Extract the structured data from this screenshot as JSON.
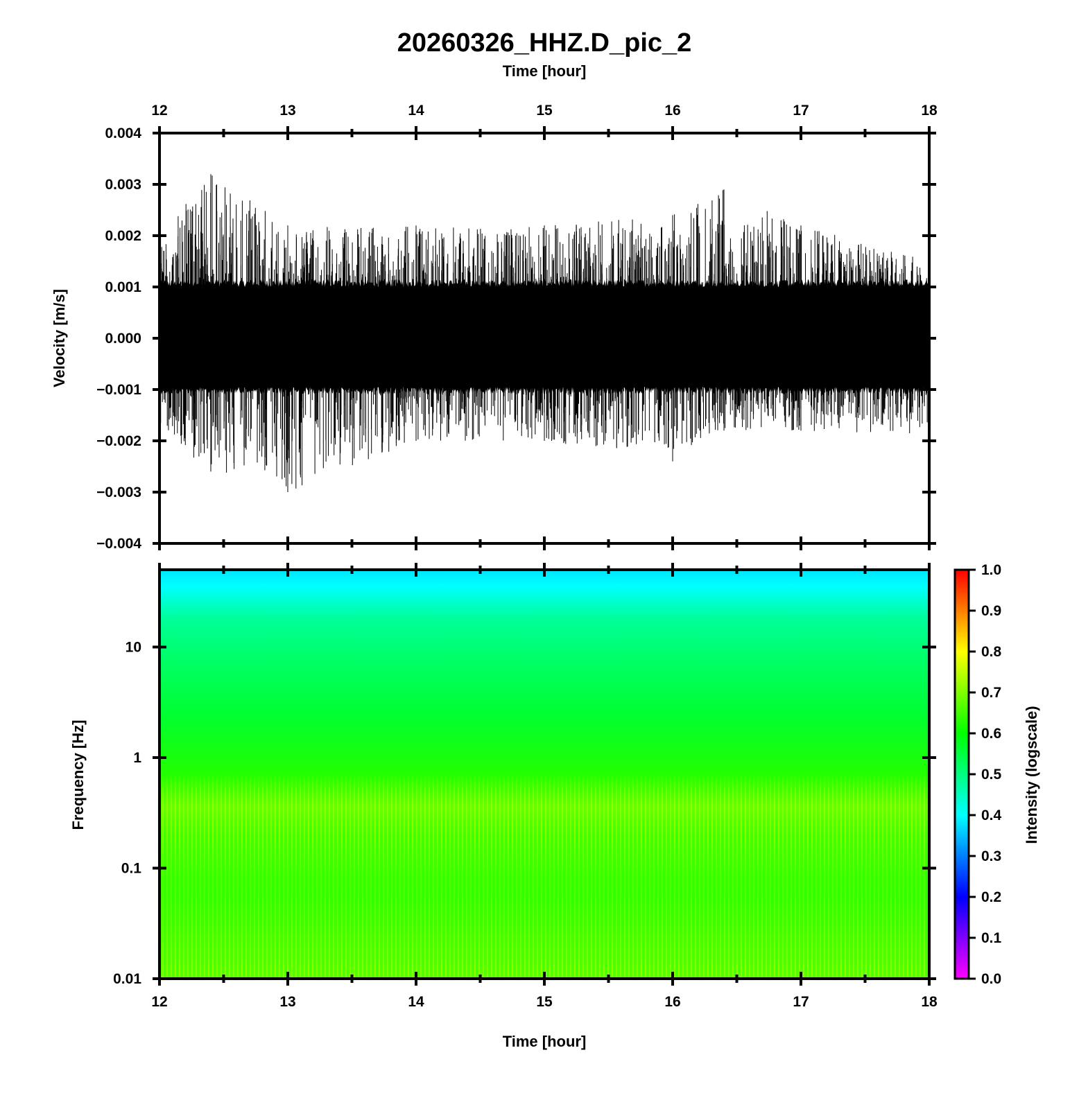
{
  "chart_data": [
    {
      "type": "line",
      "title": "20260326_HHZ.D_pic_2",
      "xlabel": "Time [hour]",
      "ylabel": "Velocity [m/s]",
      "xlim": [
        12,
        18
      ],
      "ylim": [
        -0.004,
        0.004
      ],
      "x_ticks": [
        "12",
        "13",
        "14",
        "15",
        "16",
        "17",
        "18"
      ],
      "y_ticks": [
        "0.004",
        "0.003",
        "0.002",
        "0.001",
        "0.000",
        "−0.001",
        "−0.002",
        "−0.003",
        "−0.004"
      ],
      "series": [
        {
          "x": [
            12.0,
            12.4,
            13.0,
            14.0,
            15.0,
            16.0,
            16.4,
            17.0,
            18.0
          ],
          "envelope_upper": [
            0.002,
            0.0032,
            0.0022,
            0.0022,
            0.0022,
            0.0024,
            0.0029,
            0.0022,
            0.0015
          ],
          "envelope_lower": [
            -0.0018,
            -0.0026,
            -0.003,
            -0.002,
            -0.002,
            -0.0024,
            -0.0018,
            -0.0018,
            -0.0019
          ],
          "color": "#000000"
        }
      ],
      "grid": false
    },
    {
      "type": "heatmap",
      "xlabel": "Time [hour]",
      "ylabel": "Frequency [Hz]",
      "xlim": [
        12,
        18
      ],
      "ylim": [
        0.01,
        50
      ],
      "y_scale": "log",
      "x_ticks": [
        "12",
        "13",
        "14",
        "15",
        "16",
        "17",
        "18"
      ],
      "y_ticks": [
        "10",
        "1",
        "0.1",
        "0.01"
      ],
      "colorbar": {
        "label": "Intensity (logscale)",
        "range": [
          0.0,
          1.0
        ],
        "ticks": [
          "1.0",
          "0.9",
          "0.8",
          "0.7",
          "0.6",
          "0.5",
          "0.4",
          "0.3",
          "0.2",
          "0.1",
          "0.0"
        ],
        "colors": [
          "#ff00ff",
          "#0000ff",
          "#00ffff",
          "#00ff00",
          "#ffff00",
          "#ff0000"
        ]
      },
      "intensity_by_frequency": [
        {
          "f": 50,
          "v": 0.42
        },
        {
          "f": 20,
          "v": 0.5
        },
        {
          "f": 10,
          "v": 0.55
        },
        {
          "f": 3,
          "v": 0.58
        },
        {
          "f": 1,
          "v": 0.6
        },
        {
          "f": 0.4,
          "v": 0.64
        },
        {
          "f": 0.2,
          "v": 0.65
        },
        {
          "f": 0.05,
          "v": 0.62
        },
        {
          "f": 0.01,
          "v": 0.66
        }
      ]
    }
  ]
}
